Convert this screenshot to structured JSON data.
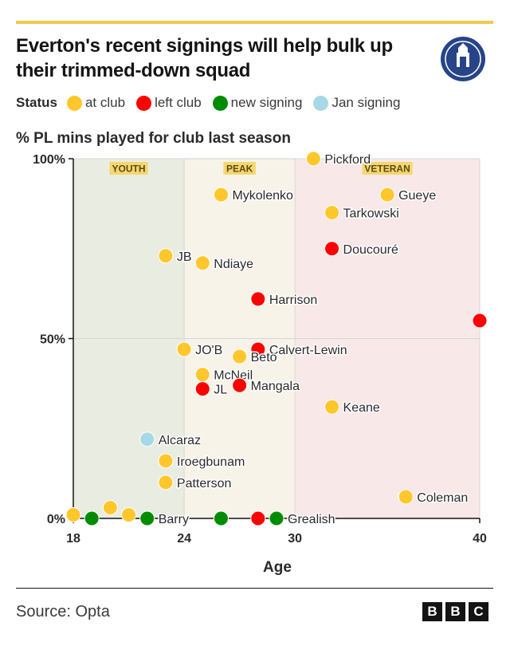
{
  "title": "Everton's recent signings will help bulk up their trimmed-down squad",
  "legend": {
    "lead": "Status",
    "items": [
      {
        "label": "at club",
        "color": "#ffc72c"
      },
      {
        "label": "left club",
        "color": "#ff0000"
      },
      {
        "label": "new signing",
        "color": "#008c00"
      },
      {
        "label": "Jan signing",
        "color": "#a8d8e6"
      }
    ]
  },
  "source": "Source: Opta",
  "logo": {
    "letters": [
      "B",
      "B",
      "C"
    ]
  },
  "chart_data": {
    "type": "scatter",
    "title": "Everton's recent signings will help bulk up their trimmed-down squad",
    "ylabel": "% PL mins played for club last season",
    "xlabel": "Age",
    "xlim": [
      18,
      40
    ],
    "ylim": [
      0,
      100
    ],
    "xticks": [
      {
        "value": 18,
        "label": "18"
      },
      {
        "value": 24,
        "label": "24"
      },
      {
        "value": 30,
        "label": "30"
      },
      {
        "value": 40,
        "label": "40"
      }
    ],
    "yticks": [
      {
        "value": 0,
        "label": "0%"
      },
      {
        "value": 50,
        "label": "50%"
      },
      {
        "value": 100,
        "label": "100%"
      }
    ],
    "bands": [
      {
        "label": "YOUTH",
        "from": 18,
        "to": 24,
        "color": "#e9ede1"
      },
      {
        "label": "PEAK",
        "from": 24,
        "to": 30,
        "color": "#f7f3e9"
      },
      {
        "label": "VETERAN",
        "from": 30,
        "to": 40,
        "color": "#f9e8e8"
      }
    ],
    "colors": {
      "at club": "#ffc72c",
      "left club": "#ff0000",
      "new signing": "#008c00",
      "Jan signing": "#a8d8e6"
    },
    "points": [
      {
        "name": "Pickford",
        "age": 31,
        "pct": 100,
        "status": "at club"
      },
      {
        "name": "Mykolenko",
        "age": 26,
        "pct": 90,
        "status": "at club"
      },
      {
        "name": "Gueye",
        "age": 35,
        "pct": 90,
        "status": "at club"
      },
      {
        "name": "Tarkowski",
        "age": 32,
        "pct": 85,
        "status": "at club"
      },
      {
        "name": "Doucouré",
        "age": 32,
        "pct": 75,
        "status": "left club"
      },
      {
        "name": "JB",
        "age": 23,
        "pct": 73,
        "status": "at club"
      },
      {
        "name": "Ndiaye",
        "age": 25,
        "pct": 71,
        "status": "at club"
      },
      {
        "name": "Harrison",
        "age": 28,
        "pct": 61,
        "status": "left club"
      },
      {
        "name": "",
        "age": 40,
        "pct": 55,
        "status": "left club"
      },
      {
        "name": "Calvert-Lewin",
        "age": 28,
        "pct": 47,
        "status": "left club"
      },
      {
        "name": "JO'B",
        "age": 24,
        "pct": 47,
        "status": "at club"
      },
      {
        "name": "Beto",
        "age": 27,
        "pct": 45,
        "status": "at club"
      },
      {
        "name": "McNeil",
        "age": 25,
        "pct": 40,
        "status": "at club"
      },
      {
        "name": "Mangala",
        "age": 27,
        "pct": 37,
        "status": "left club"
      },
      {
        "name": "JL",
        "age": 25,
        "pct": 36,
        "status": "left club"
      },
      {
        "name": "Keane",
        "age": 32,
        "pct": 31,
        "status": "at club"
      },
      {
        "name": "Alcaraz",
        "age": 22,
        "pct": 22,
        "status": "Jan signing"
      },
      {
        "name": "Iroegbunam",
        "age": 23,
        "pct": 16,
        "status": "at club"
      },
      {
        "name": "Patterson",
        "age": 23,
        "pct": 10,
        "status": "at club"
      },
      {
        "name": "Coleman",
        "age": 36,
        "pct": 6,
        "status": "at club"
      },
      {
        "name": "",
        "age": 20,
        "pct": 3,
        "status": "at club"
      },
      {
        "name": "",
        "age": 18,
        "pct": 1,
        "status": "at club"
      },
      {
        "name": "",
        "age": 21,
        "pct": 1,
        "status": "at club"
      },
      {
        "name": "Barry",
        "age": 22,
        "pct": 0,
        "status": "new signing"
      },
      {
        "name": "",
        "age": 19,
        "pct": 0,
        "status": "new signing"
      },
      {
        "name": "",
        "age": 26,
        "pct": 0,
        "status": "new signing"
      },
      {
        "name": "",
        "age": 28,
        "pct": 0,
        "status": "left club"
      },
      {
        "name": "Grealish",
        "age": 29,
        "pct": 0,
        "status": "new signing"
      }
    ]
  }
}
